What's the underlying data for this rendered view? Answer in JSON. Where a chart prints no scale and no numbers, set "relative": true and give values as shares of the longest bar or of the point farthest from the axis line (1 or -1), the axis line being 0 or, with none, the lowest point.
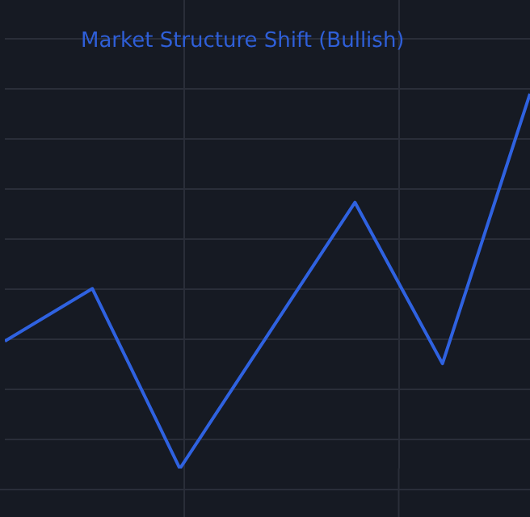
{
  "chart_data": {
    "type": "line",
    "title": "Market Structure Shift (Bullish)",
    "relative": true,
    "categories": [
      null,
      null,
      null,
      null,
      null,
      null,
      null
    ],
    "series": [
      {
        "color": "#2f62e0",
        "values": [
          0.34,
          0.48,
          0,
          0.355,
          0.71,
          0.28,
          1
        ]
      }
    ],
    "grid": true,
    "legend": false,
    "marker": "none",
    "line_style": "solid"
  }
}
